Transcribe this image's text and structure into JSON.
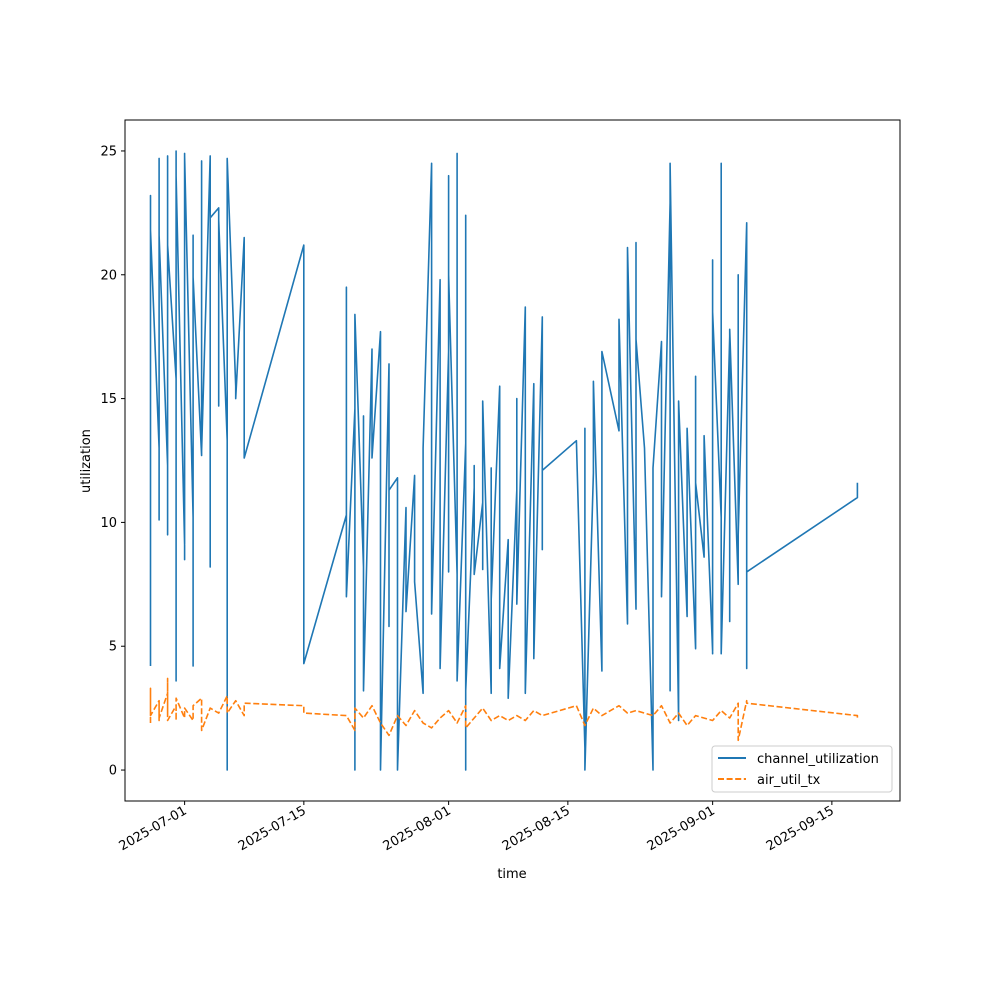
{
  "chart_data": {
    "type": "line",
    "title": "",
    "xlabel": "time",
    "ylabel": "utilization",
    "xlim": [
      "2025-06-24",
      "2025-09-23"
    ],
    "ylim": [
      -1.25,
      26.25
    ],
    "grid": false,
    "legend_position": "lower-right",
    "x_ticks": [
      "2025-07-01",
      "2025-07-15",
      "2025-08-01",
      "2025-08-15",
      "2025-09-01",
      "2025-09-15"
    ],
    "y_ticks": [
      0,
      5,
      10,
      15,
      20,
      25
    ],
    "series": [
      {
        "name": "channel_utilization",
        "color": "#1f77b4",
        "style": "solid",
        "points": [
          [
            "2025-06-27",
            4.2
          ],
          [
            "2025-06-27",
            20.4
          ],
          [
            "2025-06-27",
            12.0
          ],
          [
            "2025-06-27",
            23.1
          ],
          [
            "2025-06-27",
            16.0
          ],
          [
            "2025-06-27",
            23.2
          ],
          [
            "2025-06-27",
            10.6
          ],
          [
            "2025-06-27",
            21.8
          ],
          [
            "2025-06-28",
            13.0
          ],
          [
            "2025-06-28",
            23.9
          ],
          [
            "2025-06-28",
            14.9
          ],
          [
            "2025-06-28",
            24.7
          ],
          [
            "2025-06-28",
            10.7
          ],
          [
            "2025-06-28",
            22.4
          ],
          [
            "2025-06-28",
            15.2
          ],
          [
            "2025-06-28",
            24.0
          ],
          [
            "2025-06-28",
            10.1
          ],
          [
            "2025-06-28",
            21.6
          ],
          [
            "2025-06-29",
            12.3
          ],
          [
            "2025-06-29",
            23.0
          ],
          [
            "2025-06-29",
            9.5
          ],
          [
            "2025-06-29",
            24.8
          ],
          [
            "2025-06-29",
            14.4
          ],
          [
            "2025-06-29",
            22.2
          ],
          [
            "2025-06-29",
            11.7
          ],
          [
            "2025-06-29",
            23.9
          ],
          [
            "2025-06-29",
            10.3
          ],
          [
            "2025-06-29",
            21.2
          ],
          [
            "2025-06-30",
            15.8
          ],
          [
            "2025-06-30",
            25.0
          ],
          [
            "2025-06-30",
            11.0
          ],
          [
            "2025-06-30",
            20.3
          ],
          [
            "2025-06-30",
            13.9
          ],
          [
            "2025-06-30",
            23.8
          ],
          [
            "2025-06-30",
            3.6
          ],
          [
            "2025-06-30",
            24.0
          ],
          [
            "2025-07-01",
            9.1
          ],
          [
            "2025-07-01",
            22.9
          ],
          [
            "2025-07-01",
            12.4
          ],
          [
            "2025-07-01",
            24.9
          ],
          [
            "2025-07-01",
            8.5
          ],
          [
            "2025-07-01",
            22.7
          ],
          [
            "2025-07-01",
            11.2
          ],
          [
            "2025-07-01",
            24.8
          ],
          [
            "2025-07-02",
            10.2
          ],
          [
            "2025-07-02",
            20.0
          ],
          [
            "2025-07-02",
            8.1
          ],
          [
            "2025-07-02",
            21.6
          ],
          [
            "2025-07-02",
            13.4
          ],
          [
            "2025-07-02",
            4.2
          ],
          [
            "2025-07-02",
            19.9
          ],
          [
            "2025-07-03",
            12.7
          ],
          [
            "2025-07-03",
            24.6
          ],
          [
            "2025-07-03",
            13.3
          ],
          [
            "2025-07-03",
            24.3
          ],
          [
            "2025-07-03",
            12.9
          ],
          [
            "2025-07-04",
            24.8
          ],
          [
            "2025-07-04",
            8.2
          ],
          [
            "2025-07-04",
            21.9
          ],
          [
            "2025-07-04",
            22.3
          ],
          [
            "2025-07-05",
            22.7
          ],
          [
            "2025-07-05",
            14.7
          ],
          [
            "2025-07-05",
            22.2
          ],
          [
            "2025-07-06",
            13.3
          ],
          [
            "2025-07-06",
            23.1
          ],
          [
            "2025-07-06",
            0.0
          ],
          [
            "2025-07-06",
            24.7
          ],
          [
            "2025-07-07",
            15.5
          ],
          [
            "2025-07-07",
            15.0
          ],
          [
            "2025-07-08",
            21.5
          ],
          [
            "2025-07-08",
            12.6
          ],
          [
            "2025-07-15",
            21.2
          ],
          [
            "2025-07-15",
            4.3
          ],
          [
            "2025-07-20",
            10.3
          ],
          [
            "2025-07-20",
            19.5
          ],
          [
            "2025-07-20",
            7.0
          ],
          [
            "2025-07-21",
            14.6
          ],
          [
            "2025-07-21",
            0.0
          ],
          [
            "2025-07-21",
            18.1
          ],
          [
            "2025-07-21",
            7.2
          ],
          [
            "2025-07-21",
            18.4
          ],
          [
            "2025-07-22",
            8.2
          ],
          [
            "2025-07-22",
            14.3
          ],
          [
            "2025-07-22",
            3.2
          ],
          [
            "2025-07-23",
            17.0
          ],
          [
            "2025-07-23",
            12.6
          ],
          [
            "2025-07-24",
            17.7
          ],
          [
            "2025-07-24",
            0.0
          ],
          [
            "2025-07-25",
            16.4
          ],
          [
            "2025-07-25",
            5.8
          ],
          [
            "2025-07-25",
            11.3
          ],
          [
            "2025-07-26",
            11.8
          ],
          [
            "2025-07-26",
            0.0
          ],
          [
            "2025-07-26",
            11.8
          ],
          [
            "2025-07-26",
            0.0
          ],
          [
            "2025-07-27",
            10.6
          ],
          [
            "2025-07-27",
            6.4
          ],
          [
            "2025-07-28",
            11.9
          ],
          [
            "2025-07-28",
            7.6
          ],
          [
            "2025-07-29",
            3.1
          ],
          [
            "2025-07-29",
            13.0
          ],
          [
            "2025-07-30",
            24.5
          ],
          [
            "2025-07-30",
            6.3
          ],
          [
            "2025-07-31",
            19.8
          ],
          [
            "2025-07-31",
            4.1
          ],
          [
            "2025-08-01",
            16.9
          ],
          [
            "2025-08-01",
            24.0
          ],
          [
            "2025-08-01",
            8.0
          ],
          [
            "2025-08-01",
            20.0
          ],
          [
            "2025-08-02",
            7.9
          ],
          [
            "2025-08-02",
            24.9
          ],
          [
            "2025-08-02",
            3.6
          ],
          [
            "2025-08-03",
            13.2
          ],
          [
            "2025-08-03",
            12.4
          ],
          [
            "2025-08-03",
            0.0
          ],
          [
            "2025-08-03",
            22.4
          ],
          [
            "2025-08-03",
            3.2
          ],
          [
            "2025-08-04",
            11.4
          ],
          [
            "2025-08-04",
            12.3
          ],
          [
            "2025-08-04",
            7.9
          ],
          [
            "2025-08-05",
            10.8
          ],
          [
            "2025-08-05",
            8.1
          ],
          [
            "2025-08-05",
            14.9
          ],
          [
            "2025-08-06",
            3.1
          ],
          [
            "2025-08-06",
            12.2
          ],
          [
            "2025-08-06",
            6.9
          ],
          [
            "2025-08-07",
            15.5
          ],
          [
            "2025-08-07",
            4.1
          ],
          [
            "2025-08-08",
            9.3
          ],
          [
            "2025-08-08",
            2.9
          ],
          [
            "2025-08-09",
            11.3
          ],
          [
            "2025-08-09",
            15.0
          ],
          [
            "2025-08-09",
            6.7
          ],
          [
            "2025-08-10",
            18.7
          ],
          [
            "2025-08-10",
            3.1
          ],
          [
            "2025-08-11",
            15.6
          ],
          [
            "2025-08-11",
            12.2
          ],
          [
            "2025-08-11",
            4.5
          ],
          [
            "2025-08-12",
            18.3
          ],
          [
            "2025-08-12",
            8.9
          ],
          [
            "2025-08-12",
            12.1
          ],
          [
            "2025-08-16",
            13.3
          ],
          [
            "2025-08-17",
            0.9
          ],
          [
            "2025-08-17",
            13.8
          ],
          [
            "2025-08-17",
            0.0
          ],
          [
            "2025-08-18",
            12.0
          ],
          [
            "2025-08-18",
            15.7
          ],
          [
            "2025-08-19",
            4.0
          ],
          [
            "2025-08-19",
            16.9
          ],
          [
            "2025-08-21",
            13.7
          ],
          [
            "2025-08-21",
            18.2
          ],
          [
            "2025-08-22",
            5.9
          ],
          [
            "2025-08-22",
            21.1
          ],
          [
            "2025-08-23",
            6.5
          ],
          [
            "2025-08-23",
            21.3
          ],
          [
            "2025-08-23",
            17.4
          ],
          [
            "2025-08-24",
            13.0
          ],
          [
            "2025-08-25",
            0.0
          ],
          [
            "2025-08-25",
            12.2
          ],
          [
            "2025-08-26",
            17.3
          ],
          [
            "2025-08-26",
            7.0
          ],
          [
            "2025-08-27",
            22.9
          ],
          [
            "2025-08-27",
            3.2
          ],
          [
            "2025-08-27",
            24.5
          ],
          [
            "2025-08-28",
            2.0
          ],
          [
            "2025-08-28",
            14.9
          ],
          [
            "2025-08-29",
            6.2
          ],
          [
            "2025-08-29",
            13.8
          ],
          [
            "2025-08-30",
            4.9
          ],
          [
            "2025-08-30",
            15.9
          ],
          [
            "2025-08-30",
            11.6
          ],
          [
            "2025-08-31",
            8.6
          ],
          [
            "2025-08-31",
            13.5
          ],
          [
            "2025-09-01",
            4.8
          ],
          [
            "2025-09-01",
            20.6
          ],
          [
            "2025-09-01",
            4.7
          ],
          [
            "2025-09-01",
            18.5
          ],
          [
            "2025-09-02",
            10.2
          ],
          [
            "2025-09-02",
            24.5
          ],
          [
            "2025-09-02",
            4.7
          ],
          [
            "2025-09-03",
            17.5
          ],
          [
            "2025-09-03",
            6.0
          ],
          [
            "2025-09-03",
            17.8
          ],
          [
            "2025-09-04",
            7.5
          ],
          [
            "2025-09-04",
            20.0
          ],
          [
            "2025-09-04",
            9.5
          ],
          [
            "2025-09-05",
            22.1
          ],
          [
            "2025-09-05",
            12.7
          ],
          [
            "2025-09-05",
            18.6
          ],
          [
            "2025-09-05",
            4.1
          ],
          [
            "2025-09-05",
            8.0
          ],
          [
            "2025-09-18",
            11.0
          ],
          [
            "2025-09-18",
            11.6
          ]
        ]
      },
      {
        "name": "air_util_tx",
        "color": "#ff7f0e",
        "style": "dashed",
        "points": [
          [
            "2025-06-27",
            1.9
          ],
          [
            "2025-06-27",
            3.3
          ],
          [
            "2025-06-27",
            2.2
          ],
          [
            "2025-06-28",
            2.8
          ],
          [
            "2025-06-28",
            2.0
          ],
          [
            "2025-06-28",
            2.7
          ],
          [
            "2025-06-28",
            2.1
          ],
          [
            "2025-06-29",
            3.1
          ],
          [
            "2025-06-29",
            2.2
          ],
          [
            "2025-06-29",
            3.7
          ],
          [
            "2025-06-29",
            2.0
          ],
          [
            "2025-06-30",
            2.6
          ],
          [
            "2025-06-30",
            2.0
          ],
          [
            "2025-06-30",
            2.9
          ],
          [
            "2025-07-01",
            2.1
          ],
          [
            "2025-07-01",
            2.5
          ],
          [
            "2025-07-02",
            2.0
          ],
          [
            "2025-07-02",
            2.6
          ],
          [
            "2025-07-03",
            2.9
          ],
          [
            "2025-07-03",
            1.6
          ],
          [
            "2025-07-04",
            2.5
          ],
          [
            "2025-07-05",
            2.3
          ],
          [
            "2025-07-06",
            3.0
          ],
          [
            "2025-07-06",
            2.3
          ],
          [
            "2025-07-07",
            2.8
          ],
          [
            "2025-07-08",
            2.2
          ],
          [
            "2025-07-08",
            2.7
          ],
          [
            "2025-07-15",
            2.6
          ],
          [
            "2025-07-15",
            2.3
          ],
          [
            "2025-07-20",
            2.2
          ],
          [
            "2025-07-21",
            1.6
          ],
          [
            "2025-07-21",
            2.5
          ],
          [
            "2025-07-22",
            2.1
          ],
          [
            "2025-07-23",
            2.6
          ],
          [
            "2025-07-24",
            1.9
          ],
          [
            "2025-07-25",
            1.4
          ],
          [
            "2025-07-26",
            2.2
          ],
          [
            "2025-07-27",
            1.8
          ],
          [
            "2025-07-28",
            2.4
          ],
          [
            "2025-07-29",
            1.9
          ],
          [
            "2025-07-30",
            1.7
          ],
          [
            "2025-07-31",
            2.1
          ],
          [
            "2025-08-01",
            2.4
          ],
          [
            "2025-08-02",
            1.9
          ],
          [
            "2025-08-03",
            2.6
          ],
          [
            "2025-08-03",
            1.7
          ],
          [
            "2025-08-05",
            2.5
          ],
          [
            "2025-08-06",
            2.0
          ],
          [
            "2025-08-07",
            2.2
          ],
          [
            "2025-08-08",
            2.0
          ],
          [
            "2025-08-09",
            2.2
          ],
          [
            "2025-08-10",
            2.0
          ],
          [
            "2025-08-11",
            2.4
          ],
          [
            "2025-08-12",
            2.2
          ],
          [
            "2025-08-16",
            2.6
          ],
          [
            "2025-08-17",
            1.8
          ],
          [
            "2025-08-18",
            2.5
          ],
          [
            "2025-08-19",
            2.2
          ],
          [
            "2025-08-21",
            2.6
          ],
          [
            "2025-08-22",
            2.3
          ],
          [
            "2025-08-23",
            2.4
          ],
          [
            "2025-08-25",
            2.2
          ],
          [
            "2025-08-26",
            2.6
          ],
          [
            "2025-08-27",
            1.9
          ],
          [
            "2025-08-28",
            2.3
          ],
          [
            "2025-08-29",
            1.8
          ],
          [
            "2025-08-30",
            2.2
          ],
          [
            "2025-09-01",
            2.0
          ],
          [
            "2025-09-02",
            2.4
          ],
          [
            "2025-09-03",
            2.1
          ],
          [
            "2025-09-04",
            2.7
          ],
          [
            "2025-09-04",
            1.2
          ],
          [
            "2025-09-05",
            2.8
          ],
          [
            "2025-09-05",
            2.7
          ],
          [
            "2025-09-18",
            2.2
          ],
          [
            "2025-09-18",
            2.1
          ]
        ]
      }
    ]
  }
}
